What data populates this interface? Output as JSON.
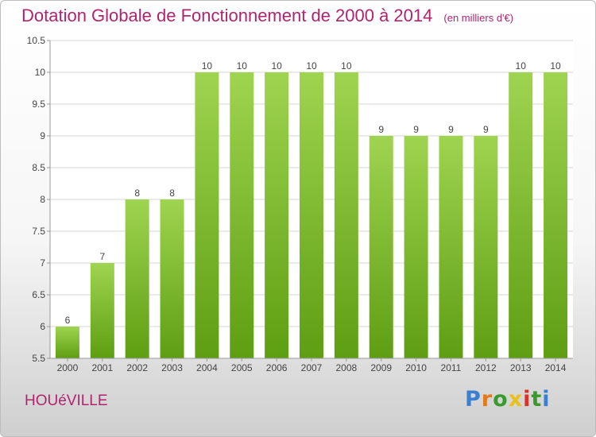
{
  "header": {
    "title": "Dotation Globale de Fonctionnement de 2000 à 2014",
    "subtitle": "(en milliers d'€)"
  },
  "footer": {
    "commune": "HOUéVILLE",
    "logo": {
      "letters": [
        "P",
        "r",
        "o",
        "x",
        "i",
        "t",
        "i"
      ],
      "colors": [
        "#3a7fd0",
        "#e07a1e",
        "#3a9a2e",
        "#e8c21a",
        "#d8332a",
        "#3a9a2e",
        "#3a7fd0"
      ]
    }
  },
  "colors": {
    "bar_light": "#9fd450",
    "bar_dark": "#5e9e12",
    "grid": "#d6d6d6",
    "axis": "#999999",
    "text": "#444444"
  },
  "chart_data": {
    "type": "bar",
    "categories": [
      "2000",
      "2001",
      "2002",
      "2003",
      "2004",
      "2005",
      "2006",
      "2007",
      "2008",
      "2009",
      "2010",
      "2011",
      "2012",
      "2013",
      "2014"
    ],
    "values": [
      6,
      7,
      8,
      8,
      10,
      10,
      10,
      10,
      10,
      9,
      9,
      9,
      9,
      10,
      10
    ],
    "data_labels": [
      "6",
      "7",
      "8",
      "8",
      "10",
      "10",
      "10",
      "10",
      "10",
      "9",
      "9",
      "9",
      "9",
      "10",
      "10"
    ],
    "yticks": [
      "5.5",
      "6",
      "6.5",
      "7",
      "7.5",
      "8",
      "8.5",
      "9",
      "9.5",
      "10",
      "10.5"
    ],
    "ylim": [
      5.5,
      10.5
    ],
    "grid": true,
    "title": "Dotation Globale de Fonctionnement de 2000 à 2014",
    "xlabel": "",
    "ylabel": ""
  }
}
